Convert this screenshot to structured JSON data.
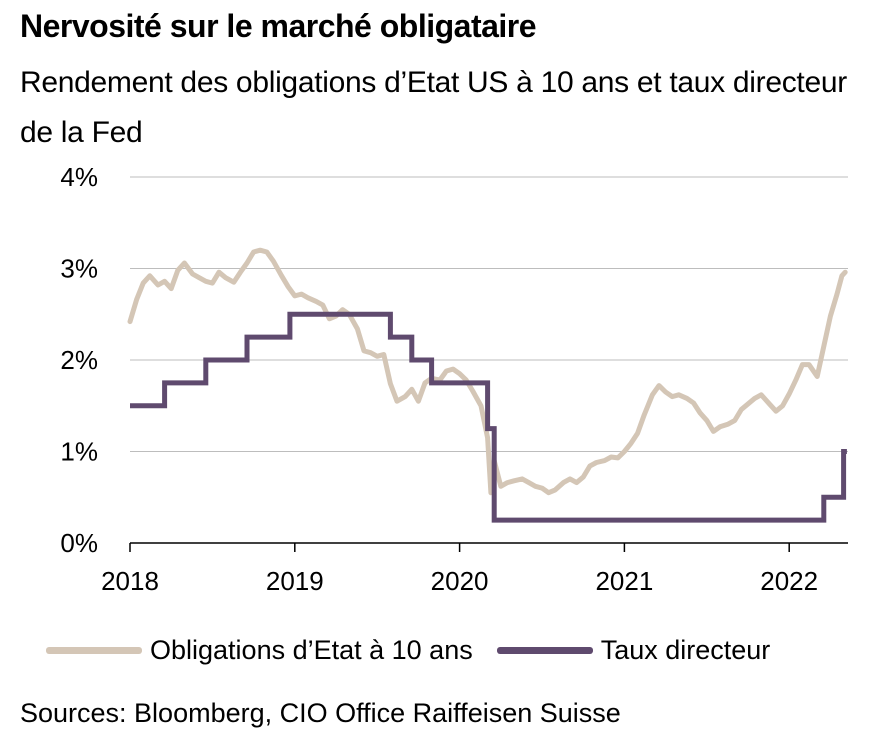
{
  "title": "Nervosité sur le marché obligataire",
  "subtitle": "Rendement des obligations d’Etat US à 10 ans et taux directeur de la Fed",
  "source": "Sources: Bloomberg, CIO Office Raiffeisen Suisse",
  "colors": {
    "bond": "#d4c6b6",
    "fed": "#5f4a6e",
    "grid": "#bdbdbd",
    "axis": "#000000"
  },
  "chart_data": {
    "type": "line",
    "title": "Nervosité sur le marché obligataire",
    "subtitle": "Rendement des obligations d’Etat US à 10 ans et taux directeur de la Fed",
    "xlabel": "",
    "ylabel": "",
    "xlim": [
      2018.0,
      2022.35
    ],
    "ylim": [
      0,
      4
    ],
    "x_ticks": [
      "2018",
      "2019",
      "2020",
      "2021",
      "2022"
    ],
    "y_ticks": [
      "0%",
      "1%",
      "2%",
      "3%",
      "4%"
    ],
    "grid": "horizontal",
    "legend_position": "bottom",
    "series": [
      {
        "name": "Obligations d’Etat à 10 ans",
        "style": "line",
        "points": [
          [
            2018.0,
            2.42
          ],
          [
            2018.04,
            2.66
          ],
          [
            2018.08,
            2.84
          ],
          [
            2018.12,
            2.92
          ],
          [
            2018.17,
            2.82
          ],
          [
            2018.21,
            2.86
          ],
          [
            2018.25,
            2.78
          ],
          [
            2018.29,
            2.98
          ],
          [
            2018.33,
            3.06
          ],
          [
            2018.38,
            2.94
          ],
          [
            2018.42,
            2.9
          ],
          [
            2018.46,
            2.86
          ],
          [
            2018.5,
            2.84
          ],
          [
            2018.54,
            2.96
          ],
          [
            2018.58,
            2.9
          ],
          [
            2018.63,
            2.85
          ],
          [
            2018.67,
            2.96
          ],
          [
            2018.71,
            3.06
          ],
          [
            2018.75,
            3.18
          ],
          [
            2018.79,
            3.2
          ],
          [
            2018.83,
            3.18
          ],
          [
            2018.87,
            3.08
          ],
          [
            2018.92,
            2.92
          ],
          [
            2018.96,
            2.8
          ],
          [
            2019.0,
            2.7
          ],
          [
            2019.04,
            2.72
          ],
          [
            2019.08,
            2.68
          ],
          [
            2019.13,
            2.64
          ],
          [
            2019.17,
            2.6
          ],
          [
            2019.21,
            2.45
          ],
          [
            2019.25,
            2.48
          ],
          [
            2019.29,
            2.55
          ],
          [
            2019.33,
            2.5
          ],
          [
            2019.38,
            2.34
          ],
          [
            2019.42,
            2.1
          ],
          [
            2019.46,
            2.08
          ],
          [
            2019.5,
            2.04
          ],
          [
            2019.54,
            2.06
          ],
          [
            2019.58,
            1.74
          ],
          [
            2019.62,
            1.55
          ],
          [
            2019.67,
            1.6
          ],
          [
            2019.71,
            1.68
          ],
          [
            2019.75,
            1.55
          ],
          [
            2019.79,
            1.75
          ],
          [
            2019.83,
            1.8
          ],
          [
            2019.88,
            1.78
          ],
          [
            2019.92,
            1.88
          ],
          [
            2019.96,
            1.9
          ],
          [
            2020.0,
            1.85
          ],
          [
            2020.04,
            1.78
          ],
          [
            2020.08,
            1.66
          ],
          [
            2020.13,
            1.5
          ],
          [
            2020.17,
            1.15
          ],
          [
            2020.19,
            0.55
          ],
          [
            2020.21,
            0.9
          ],
          [
            2020.25,
            0.62
          ],
          [
            2020.29,
            0.66
          ],
          [
            2020.33,
            0.68
          ],
          [
            2020.38,
            0.7
          ],
          [
            2020.42,
            0.66
          ],
          [
            2020.46,
            0.62
          ],
          [
            2020.5,
            0.6
          ],
          [
            2020.54,
            0.55
          ],
          [
            2020.58,
            0.58
          ],
          [
            2020.63,
            0.66
          ],
          [
            2020.67,
            0.7
          ],
          [
            2020.71,
            0.66
          ],
          [
            2020.75,
            0.72
          ],
          [
            2020.79,
            0.84
          ],
          [
            2020.83,
            0.88
          ],
          [
            2020.88,
            0.9
          ],
          [
            2020.92,
            0.94
          ],
          [
            2020.96,
            0.93
          ],
          [
            2021.0,
            1.0
          ],
          [
            2021.04,
            1.09
          ],
          [
            2021.08,
            1.2
          ],
          [
            2021.12,
            1.4
          ],
          [
            2021.17,
            1.62
          ],
          [
            2021.21,
            1.72
          ],
          [
            2021.25,
            1.65
          ],
          [
            2021.29,
            1.6
          ],
          [
            2021.33,
            1.62
          ],
          [
            2021.38,
            1.58
          ],
          [
            2021.42,
            1.53
          ],
          [
            2021.46,
            1.42
          ],
          [
            2021.5,
            1.34
          ],
          [
            2021.54,
            1.22
          ],
          [
            2021.58,
            1.27
          ],
          [
            2021.63,
            1.3
          ],
          [
            2021.67,
            1.34
          ],
          [
            2021.71,
            1.46
          ],
          [
            2021.75,
            1.52
          ],
          [
            2021.79,
            1.58
          ],
          [
            2021.83,
            1.62
          ],
          [
            2021.88,
            1.52
          ],
          [
            2021.92,
            1.44
          ],
          [
            2021.96,
            1.5
          ],
          [
            2022.0,
            1.63
          ],
          [
            2022.04,
            1.78
          ],
          [
            2022.08,
            1.95
          ],
          [
            2022.12,
            1.95
          ],
          [
            2022.17,
            1.82
          ],
          [
            2022.21,
            2.15
          ],
          [
            2022.25,
            2.48
          ],
          [
            2022.29,
            2.72
          ],
          [
            2022.32,
            2.92
          ],
          [
            2022.34,
            2.96
          ]
        ]
      },
      {
        "name": "Taux directeur",
        "style": "step",
        "points": [
          [
            2018.0,
            1.5
          ],
          [
            2018.21,
            1.75
          ],
          [
            2018.46,
            2.0
          ],
          [
            2018.71,
            2.25
          ],
          [
            2018.97,
            2.5
          ],
          [
            2019.58,
            2.25
          ],
          [
            2019.71,
            2.0
          ],
          [
            2019.83,
            1.75
          ],
          [
            2020.17,
            1.25
          ],
          [
            2020.21,
            0.25
          ],
          [
            2022.21,
            0.5
          ],
          [
            2022.33,
            1.0
          ],
          [
            2022.35,
            1.0
          ]
        ]
      }
    ]
  }
}
